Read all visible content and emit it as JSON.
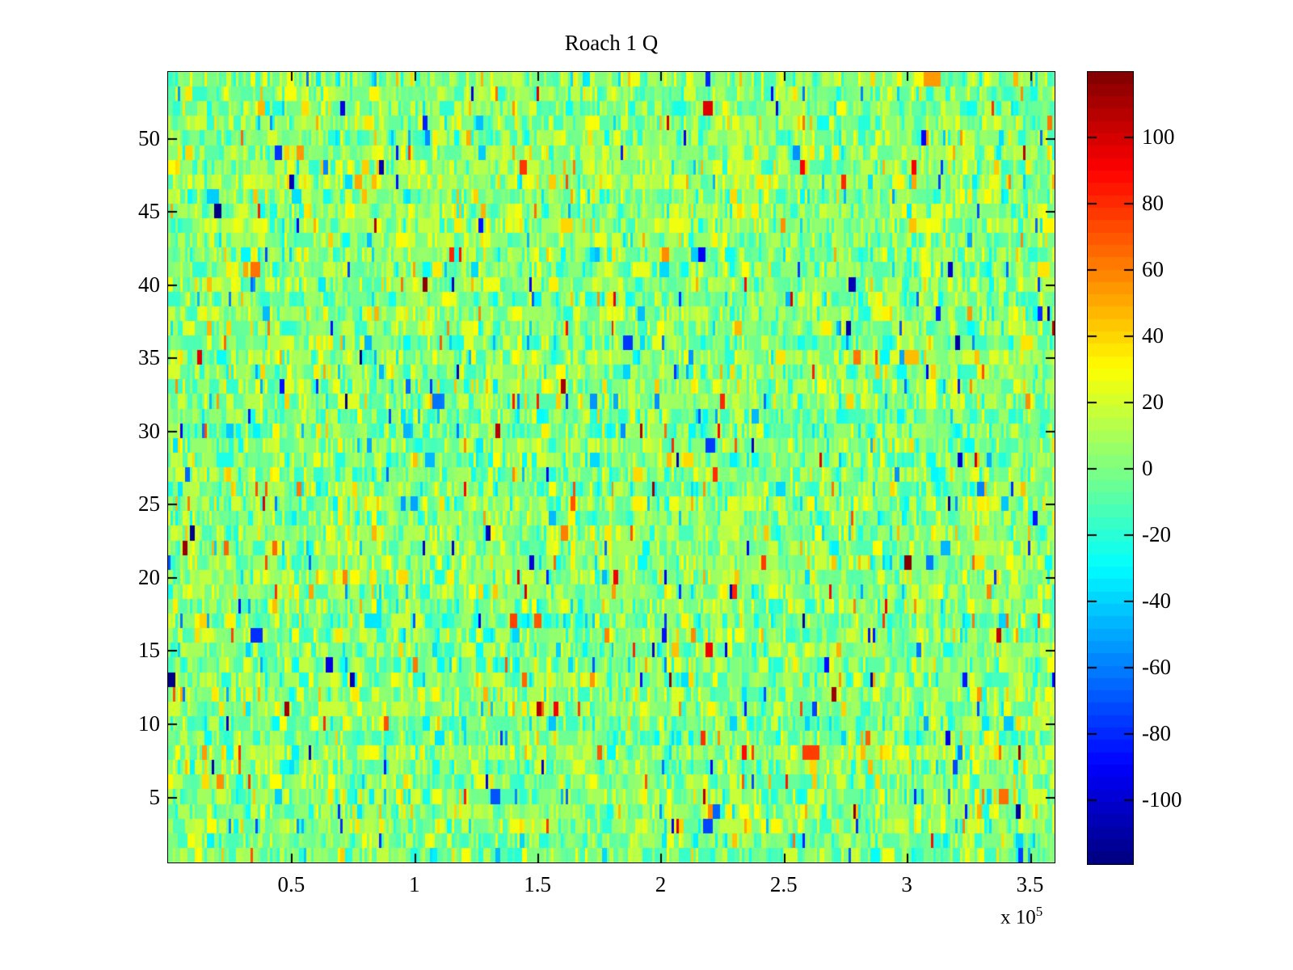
{
  "title": "Roach 1 Q",
  "chart_data": {
    "type": "heatmap",
    "title": "Roach 1 Q",
    "xlabel": "",
    "ylabel": "",
    "colormap": "jet",
    "x_axis": {
      "range": [
        0,
        360000
      ],
      "tick_values": [
        50000,
        100000,
        150000,
        200000,
        250000,
        300000,
        350000
      ],
      "tick_labels": [
        "0.5",
        "1",
        "1.5",
        "2",
        "2.5",
        "3",
        "3.5"
      ],
      "exponent_prefix": "x 10",
      "exponent": "5"
    },
    "y_axis": {
      "range": [
        0.5,
        54.5
      ],
      "tick_values": [
        5,
        10,
        15,
        20,
        25,
        30,
        35,
        40,
        45,
        50
      ],
      "tick_labels": [
        "5",
        "10",
        "15",
        "20",
        "25",
        "30",
        "35",
        "40",
        "45",
        "50"
      ]
    },
    "colorbar": {
      "clim": [
        -119.5,
        119.5
      ],
      "bands": 64,
      "tick_values": [
        100,
        80,
        60,
        40,
        20,
        0,
        -20,
        -40,
        -60,
        -80,
        -100
      ],
      "tick_labels": [
        "100",
        "80",
        "60",
        "40",
        "20",
        "0",
        "-20",
        "-40",
        "-60",
        "-80",
        "-100"
      ]
    },
    "grid": {
      "rows": 54,
      "cols": 366,
      "grid_lines": false
    },
    "value_distribution": {
      "description": "random noise centered near 0, mostly between -40 and +40 with sparse extreme vertical streaks",
      "mean": 2,
      "std": 16,
      "row_mean_jitter_std": 3,
      "repeat_prob": 0.3,
      "outlier_prob": 0.06,
      "outlier_std": 45,
      "extreme_prob": 0.009,
      "extreme_min": 68,
      "extreme_max": 118
    },
    "seed": 1337,
    "legend": "colorbar-right"
  },
  "colors": {
    "background": "#ffffff",
    "axis": "#000000",
    "text": "#000000"
  }
}
